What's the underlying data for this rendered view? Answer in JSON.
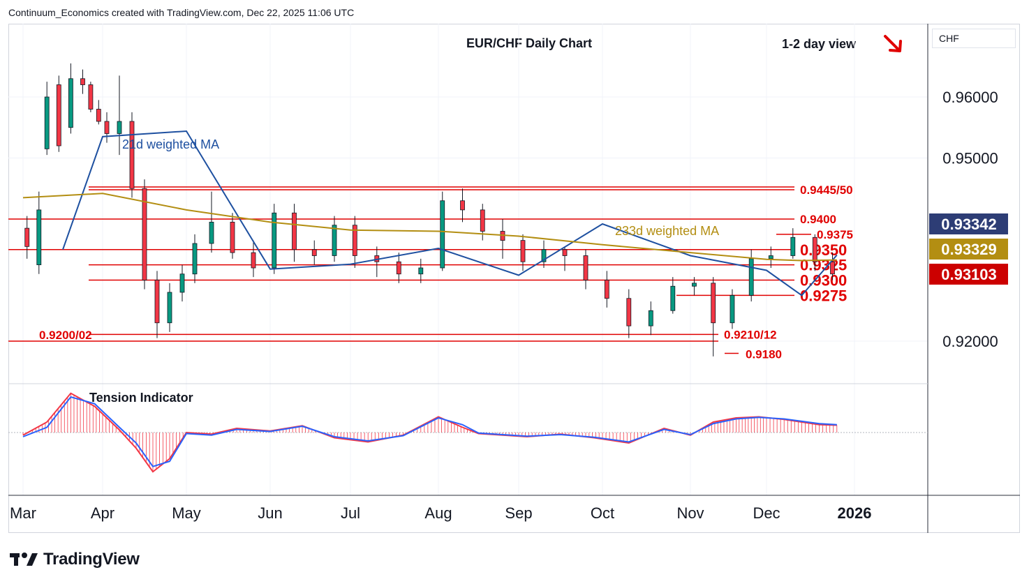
{
  "header": {
    "attribution": "Continuum_Economics created with TradingView.com, Dec 22, 2025 11:06 UTC"
  },
  "chart_title": "EUR/CHF Daily Chart",
  "view": {
    "label": "1-2 day view",
    "direction": "down-arrow-icon"
  },
  "currency": "CHF",
  "brand": "TradingView",
  "colors": {
    "up": "#089981",
    "down": "#f23645",
    "level": "#e00000",
    "ma21": "#1e50a0",
    "ma233": "#b38e12"
  },
  "chart_data": {
    "type": "line",
    "price_axis": {
      "ticks": [
        "0.96000",
        "0.95000",
        "0.92000"
      ],
      "tick_values": [
        0.96,
        0.95,
        0.92
      ],
      "ylim": [
        0.9154,
        0.9672
      ]
    },
    "time_axis": {
      "labels": [
        "Mar",
        "Apr",
        "May",
        "Jun",
        "Jul",
        "Aug",
        "Sep",
        "Oct",
        "Nov",
        "Dec",
        "2026"
      ]
    },
    "price_badges": [
      {
        "value": "0.93342",
        "color": "#2d3d75"
      },
      {
        "value": "0.93329",
        "color": "#b38e12"
      },
      {
        "value": "0.93103",
        "color": "#cc0000"
      }
    ],
    "levels": [
      {
        "label": "0.9445/50",
        "value": 0.9448,
        "from": "Apr",
        "to": "Dec"
      },
      {
        "label": "0.9400",
        "value": 0.94,
        "from": "Mar",
        "to": "Dec"
      },
      {
        "label": "0.9375",
        "value": 0.9375,
        "from": "Dec",
        "to": "Dec"
      },
      {
        "label": "0.9350",
        "value": 0.935,
        "from": "Mar",
        "to": "Dec"
      },
      {
        "label": "0.9325",
        "value": 0.9325,
        "from": "Apr",
        "to": "Dec"
      },
      {
        "label": "0.9300",
        "value": 0.93,
        "from": "Apr",
        "to": "Dec"
      },
      {
        "label": "0.9275",
        "value": 0.9275,
        "from": "Nov",
        "to": "Dec"
      },
      {
        "label": "0.9210/12",
        "value": 0.9211,
        "from": "Apr",
        "to": "Nov"
      },
      {
        "label": "0.9200/02",
        "value": 0.92,
        "from": "Mar",
        "to": "Nov"
      },
      {
        "label": "0.9180",
        "value": 0.918,
        "from": "Nov",
        "to": "Nov"
      }
    ],
    "series": [
      {
        "name": "21d weighted MA",
        "x": [
          0.5,
          1,
          2,
          3,
          4,
          5,
          6,
          7,
          8,
          9,
          9.4,
          9.8
        ],
        "y": [
          0.935,
          0.9535,
          0.9544,
          0.9318,
          0.9326,
          0.9352,
          0.9308,
          0.9392,
          0.934,
          0.9316,
          0.9275,
          0.9341
        ]
      },
      {
        "name": "233d weighted MA",
        "x": [
          0.0,
          1,
          2,
          3,
          4,
          5,
          6,
          7,
          8,
          9,
          9.4,
          9.8
        ],
        "y": [
          0.9435,
          0.9442,
          0.9415,
          0.9395,
          0.9382,
          0.938,
          0.9372,
          0.9358,
          0.9345,
          0.9334,
          0.9332,
          0.9333
        ]
      }
    ],
    "candles": {
      "x": [
        0.05,
        0.2,
        0.3,
        0.45,
        0.6,
        0.75,
        0.85,
        0.95,
        1.05,
        1.2,
        1.35,
        1.5,
        1.65,
        1.8,
        1.95,
        2.1,
        2.3,
        2.55,
        2.8,
        3.05,
        3.3,
        3.55,
        3.8,
        4.05,
        4.3,
        4.55,
        4.8,
        5.05,
        5.3,
        5.55,
        5.8,
        6.05,
        6.3,
        6.55,
        6.8,
        7.05,
        7.3,
        7.55,
        7.8,
        8.05,
        8.3,
        8.55,
        8.8,
        9.05,
        9.3,
        9.55,
        9.75
      ],
      "close": [
        0.9355,
        0.9415,
        0.96,
        0.952,
        0.963,
        0.962,
        0.958,
        0.956,
        0.954,
        0.956,
        0.945,
        0.93,
        0.923,
        0.928,
        0.931,
        0.936,
        0.9395,
        0.9345,
        0.932,
        0.941,
        0.935,
        0.934,
        0.939,
        0.934,
        0.933,
        0.931,
        0.932,
        0.943,
        0.9415,
        0.938,
        0.9365,
        0.933,
        0.935,
        0.934,
        0.93,
        0.927,
        0.9225,
        0.925,
        0.929,
        0.9295,
        0.923,
        0.9275,
        0.9335,
        0.934,
        0.937,
        0.933,
        0.931
      ],
      "open": [
        0.9385,
        0.9325,
        0.9515,
        0.962,
        0.955,
        0.963,
        0.962,
        0.958,
        0.956,
        0.954,
        0.956,
        0.945,
        0.93,
        0.923,
        0.928,
        0.931,
        0.936,
        0.9395,
        0.9345,
        0.932,
        0.941,
        0.935,
        0.934,
        0.939,
        0.934,
        0.933,
        0.931,
        0.932,
        0.943,
        0.9415,
        0.938,
        0.9365,
        0.933,
        0.935,
        0.934,
        0.93,
        0.927,
        0.9225,
        0.925,
        0.929,
        0.9295,
        0.923,
        0.9275,
        0.9335,
        0.934,
        0.937,
        0.933
      ],
      "high": [
        0.9405,
        0.9445,
        0.9625,
        0.9635,
        0.9655,
        0.9645,
        0.9625,
        0.9595,
        0.9575,
        0.9635,
        0.9575,
        0.9465,
        0.9315,
        0.9295,
        0.9325,
        0.9375,
        0.9445,
        0.941,
        0.9365,
        0.9425,
        0.9425,
        0.9365,
        0.9405,
        0.9405,
        0.9355,
        0.9345,
        0.9335,
        0.9445,
        0.945,
        0.9425,
        0.94,
        0.9375,
        0.9365,
        0.9355,
        0.935,
        0.9315,
        0.9285,
        0.9265,
        0.9305,
        0.9305,
        0.9305,
        0.9285,
        0.935,
        0.9355,
        0.9385,
        0.9375,
        0.9345
      ],
      "low": [
        0.9335,
        0.931,
        0.9505,
        0.951,
        0.954,
        0.9605,
        0.9575,
        0.9555,
        0.9525,
        0.9505,
        0.9435,
        0.9285,
        0.9205,
        0.9215,
        0.9265,
        0.9295,
        0.9345,
        0.9335,
        0.9305,
        0.931,
        0.933,
        0.9325,
        0.933,
        0.932,
        0.9305,
        0.9295,
        0.9295,
        0.9315,
        0.9395,
        0.9365,
        0.9335,
        0.9315,
        0.932,
        0.9315,
        0.9285,
        0.9255,
        0.9205,
        0.921,
        0.9245,
        0.9275,
        0.9175,
        0.922,
        0.9265,
        0.932,
        0.9335,
        0.9315,
        0.93
      ]
    },
    "tension_indicator": {
      "label": "Tension Indicator",
      "x": [
        0.0,
        0.3,
        0.6,
        0.9,
        1.2,
        1.4,
        1.6,
        1.8,
        2.0,
        2.3,
        2.6,
        3.0,
        3.4,
        3.8,
        4.2,
        4.6,
        5.0,
        5.3,
        5.5,
        5.8,
        6.1,
        6.5,
        6.9,
        7.3,
        7.7,
        8.0,
        8.3,
        8.6,
        8.9,
        9.2,
        9.6,
        9.8
      ],
      "fast": [
        -0.05,
        0.2,
        0.75,
        0.5,
        0.05,
        -0.3,
        -0.75,
        -0.5,
        0.0,
        -0.03,
        0.08,
        0.03,
        0.13,
        -0.1,
        -0.18,
        -0.05,
        0.3,
        0.1,
        -0.02,
        -0.05,
        -0.08,
        -0.03,
        -0.1,
        -0.2,
        0.08,
        -0.05,
        0.2,
        0.28,
        0.3,
        0.25,
        0.15,
        0.14
      ],
      "slow": [
        -0.08,
        0.1,
        0.68,
        0.55,
        0.1,
        -0.2,
        -0.65,
        -0.55,
        -0.02,
        -0.05,
        0.06,
        0.02,
        0.12,
        -0.08,
        -0.16,
        -0.06,
        0.28,
        0.15,
        -0.01,
        -0.04,
        -0.07,
        -0.04,
        -0.09,
        -0.18,
        0.06,
        -0.04,
        0.17,
        0.26,
        0.29,
        0.26,
        0.17,
        0.15
      ]
    }
  }
}
